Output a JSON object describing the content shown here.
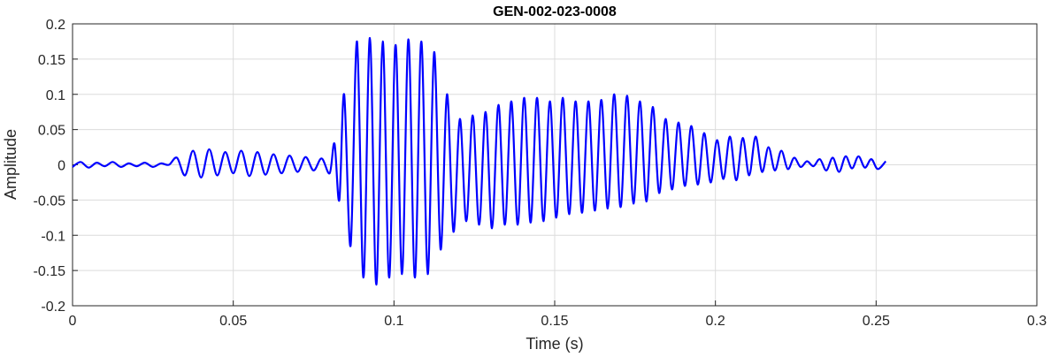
{
  "chart_data": {
    "type": "line",
    "title": "GEN-002-023-0008",
    "xlabel": "Time (s)",
    "ylabel": "Amplitude",
    "xlim": [
      0,
      0.3
    ],
    "ylim": [
      -0.2,
      0.2
    ],
    "xticks": [
      0,
      0.05,
      0.1,
      0.15,
      0.2,
      0.25,
      0.3
    ],
    "xtick_labels": [
      "0",
      "0.05",
      "0.1",
      "0.15",
      "0.2",
      "0.25",
      "0.3"
    ],
    "yticks": [
      -0.2,
      -0.15,
      -0.1,
      -0.05,
      0,
      0.05,
      0.1,
      0.15,
      0.2
    ],
    "ytick_labels": [
      "-0.2",
      "-0.15",
      "-0.1",
      "-0.05",
      "0",
      "0.05",
      "0.1",
      "0.15",
      "0.2"
    ],
    "grid": true,
    "line_color": "#0000ff",
    "series": [
      {
        "x": [
          0.0,
          0.0025,
          0.005,
          0.0075,
          0.01,
          0.0125,
          0.015,
          0.0175,
          0.02,
          0.0225,
          0.025,
          0.0275,
          0.03,
          0.0325,
          0.035,
          0.0375,
          0.04,
          0.0425,
          0.045,
          0.0475,
          0.05,
          0.0525,
          0.055,
          0.0575,
          0.06,
          0.0625,
          0.065,
          0.0675,
          0.07,
          0.0725,
          0.075,
          0.0775,
          0.08,
          0.0815,
          0.083,
          0.0845,
          0.0865,
          0.0885,
          0.0905,
          0.0925,
          0.0945,
          0.0965,
          0.0985,
          0.1005,
          0.1025,
          0.1045,
          0.1065,
          0.1085,
          0.1105,
          0.1125,
          0.1145,
          0.1165,
          0.1185,
          0.1205,
          0.1225,
          0.1245,
          0.1265,
          0.1285,
          0.1305,
          0.1325,
          0.1345,
          0.1365,
          0.1385,
          0.1405,
          0.1425,
          0.1445,
          0.1465,
          0.1485,
          0.1505,
          0.1525,
          0.1545,
          0.1565,
          0.1585,
          0.1605,
          0.1625,
          0.1645,
          0.1665,
          0.1685,
          0.1705,
          0.1725,
          0.1745,
          0.1765,
          0.1785,
          0.1805,
          0.1825,
          0.1845,
          0.1865,
          0.1885,
          0.1905,
          0.1925,
          0.1945,
          0.1965,
          0.1985,
          0.2005,
          0.2025,
          0.2045,
          0.2065,
          0.2085,
          0.2105,
          0.2125,
          0.2145,
          0.2165,
          0.2185,
          0.2205,
          0.2225,
          0.2245,
          0.2265,
          0.2285,
          0.2305,
          0.2325,
          0.2345,
          0.2365,
          0.2385,
          0.2405,
          0.2425,
          0.2445,
          0.2465,
          0.2485,
          0.2505,
          0.253
        ],
        "y": [
          -0.003,
          0.004,
          -0.004,
          0.003,
          -0.002,
          0.004,
          -0.003,
          0.002,
          -0.002,
          0.003,
          -0.003,
          0.002,
          0.0,
          0.01,
          -0.015,
          0.02,
          -0.018,
          0.022,
          -0.015,
          0.018,
          -0.012,
          0.02,
          -0.016,
          0.018,
          -0.014,
          0.015,
          -0.012,
          0.013,
          -0.01,
          0.011,
          -0.008,
          0.009,
          -0.012,
          0.03,
          -0.05,
          0.1,
          -0.115,
          0.175,
          -0.16,
          0.18,
          -0.17,
          0.175,
          -0.16,
          0.17,
          -0.155,
          0.178,
          -0.16,
          0.175,
          -0.155,
          0.16,
          -0.12,
          0.1,
          -0.095,
          0.065,
          -0.08,
          0.07,
          -0.085,
          0.075,
          -0.09,
          0.085,
          -0.085,
          0.09,
          -0.085,
          0.095,
          -0.082,
          0.095,
          -0.08,
          0.09,
          -0.075,
          0.095,
          -0.07,
          0.09,
          -0.068,
          0.09,
          -0.065,
          0.092,
          -0.062,
          0.1,
          -0.06,
          0.098,
          -0.055,
          0.09,
          -0.052,
          0.082,
          -0.04,
          0.065,
          -0.035,
          0.06,
          -0.03,
          0.055,
          -0.028,
          0.045,
          -0.025,
          0.035,
          -0.02,
          0.04,
          -0.022,
          0.038,
          -0.015,
          0.04,
          -0.01,
          0.025,
          -0.008,
          0.02,
          -0.006,
          0.01,
          -0.003,
          0.005,
          -0.002,
          0.008,
          -0.008,
          0.01,
          -0.01,
          0.012,
          -0.005,
          0.012,
          -0.004,
          0.008,
          -0.006,
          0.005
        ]
      }
    ]
  }
}
